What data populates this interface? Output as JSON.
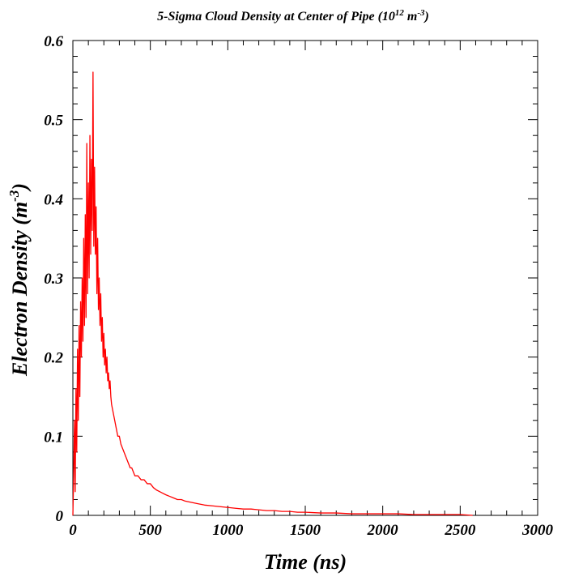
{
  "chart_data": {
    "type": "line",
    "title": {
      "main": "5-Sigma Cloud Density at Center of Pipe (10",
      "exp1": "12",
      "mid": " m",
      "exp2": "-3",
      "end": ")"
    },
    "xlabel": "Time (ns)",
    "ylabel": {
      "main": "Electron Density (m",
      "exp": "-3",
      "end": ")"
    },
    "xlim": [
      0,
      3000
    ],
    "ylim": [
      0,
      0.6
    ],
    "x_ticks": [
      0,
      500,
      1000,
      1500,
      2000,
      2500,
      3000
    ],
    "x_tick_labels": [
      "0",
      "500",
      "1000",
      "1500",
      "2000",
      "2500",
      "3000"
    ],
    "y_ticks": [
      0,
      0.1,
      0.2,
      0.3,
      0.4,
      0.5,
      0.6
    ],
    "y_tick_labels": [
      "0",
      "0.1",
      "0.2",
      "0.3",
      "0.4",
      "0.5",
      "0.6"
    ],
    "grid": false,
    "series": [
      {
        "color": "#ff0000",
        "x": [
          0,
          5,
          10,
          15,
          20,
          25,
          30,
          35,
          40,
          45,
          50,
          55,
          60,
          65,
          70,
          75,
          80,
          85,
          90,
          95,
          100,
          105,
          110,
          115,
          120,
          125,
          130,
          135,
          140,
          145,
          150,
          155,
          160,
          165,
          170,
          175,
          180,
          185,
          190,
          195,
          200,
          205,
          210,
          215,
          220,
          225,
          230,
          235,
          240,
          245,
          250,
          260,
          270,
          280,
          290,
          300,
          310,
          320,
          330,
          340,
          350,
          360,
          370,
          380,
          390,
          400,
          420,
          440,
          460,
          480,
          500,
          520,
          540,
          560,
          580,
          600,
          625,
          650,
          675,
          700,
          725,
          750,
          775,
          800,
          850,
          900,
          950,
          1000,
          1050,
          1100,
          1150,
          1200,
          1250,
          1300,
          1350,
          1400,
          1450,
          1500,
          1600,
          1700,
          1800,
          1900,
          2000,
          2100,
          2200,
          2300,
          2400,
          2500,
          2580
        ],
        "y": [
          0.0,
          0.05,
          0.12,
          0.03,
          0.16,
          0.08,
          0.21,
          0.12,
          0.24,
          0.15,
          0.27,
          0.2,
          0.3,
          0.22,
          0.35,
          0.24,
          0.38,
          0.25,
          0.47,
          0.28,
          0.42,
          0.3,
          0.48,
          0.33,
          0.45,
          0.36,
          0.56,
          0.34,
          0.44,
          0.33,
          0.39,
          0.28,
          0.35,
          0.26,
          0.3,
          0.24,
          0.28,
          0.22,
          0.25,
          0.2,
          0.23,
          0.19,
          0.21,
          0.18,
          0.2,
          0.17,
          0.18,
          0.16,
          0.17,
          0.15,
          0.14,
          0.13,
          0.12,
          0.11,
          0.1,
          0.1,
          0.09,
          0.085,
          0.08,
          0.075,
          0.07,
          0.065,
          0.06,
          0.06,
          0.055,
          0.05,
          0.05,
          0.045,
          0.045,
          0.04,
          0.04,
          0.035,
          0.032,
          0.03,
          0.028,
          0.026,
          0.024,
          0.022,
          0.02,
          0.02,
          0.018,
          0.017,
          0.016,
          0.015,
          0.013,
          0.012,
          0.011,
          0.01,
          0.009,
          0.008,
          0.008,
          0.007,
          0.006,
          0.006,
          0.005,
          0.005,
          0.004,
          0.004,
          0.003,
          0.003,
          0.002,
          0.002,
          0.002,
          0.002,
          0.001,
          0.001,
          0.001,
          0.001,
          0.0
        ]
      }
    ]
  }
}
